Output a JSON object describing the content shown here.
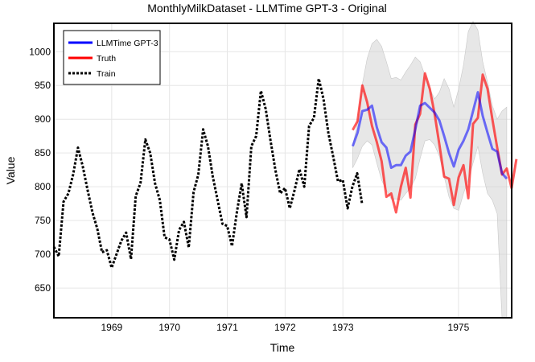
{
  "chart_data": {
    "type": "line",
    "title": "MonthlyMilkDataset - LLMTime GPT-3 - Original",
    "xlabel": "Time",
    "ylabel": "Value",
    "xlim": [
      1968.0,
      1975.92
    ],
    "ylim": [
      606,
      1042
    ],
    "xticks": [
      1969,
      1970,
      1971,
      1972,
      1973,
      1975
    ],
    "yticks": [
      650,
      700,
      750,
      800,
      850,
      900,
      950,
      1000
    ],
    "legend_position": "top-left",
    "colors": {
      "train": "#000000",
      "truth": "#ff0000",
      "forecast": "#0000ff",
      "band": "#d3d3d3"
    },
    "series": [
      {
        "name": "LLMTime GPT-3",
        "style": "solid",
        "x_start": 1973.17,
        "step": 0.0833,
        "values": [
          860,
          880,
          912,
          914,
          920,
          888,
          866,
          858,
          828,
          832,
          832,
          846,
          852,
          885,
          920,
          924,
          917,
          910,
          898,
          875,
          850,
          830,
          855,
          868,
          885,
          912,
          940,
          905,
          880,
          856,
          852,
          820,
          812
        ]
      },
      {
        "name": "Truth",
        "style": "solid",
        "x_start": 1973.17,
        "step": 0.0833,
        "values": [
          884,
          897,
          950,
          925,
          890,
          866,
          838,
          785,
          790,
          762,
          800,
          828,
          784,
          892,
          908,
          968,
          945,
          908,
          862,
          815,
          812,
          773,
          814,
          832,
          783,
          893,
          902,
          966,
          945,
          900,
          858,
          818,
          827,
          798,
          841
        ]
      },
      {
        "name": "Train",
        "style": "dotted",
        "x_start": 1968.0,
        "step": 0.0833,
        "values": [
          711,
          697,
          778,
          790,
          818,
          858,
          830,
          795,
          762,
          738,
          703,
          706,
          680,
          700,
          720,
          732,
          693,
          786,
          806,
          870,
          850,
          805,
          780,
          725,
          722,
          692,
          736,
          748,
          710,
          792,
          818,
          885,
          860,
          815,
          780,
          745,
          742,
          712,
          762,
          805,
          755,
          860,
          875,
          942,
          915,
          868,
          825,
          790,
          798,
          768,
          795,
          826,
          800,
          890,
          902,
          960,
          930,
          880,
          845,
          808,
          810,
          768,
          800,
          820,
          775
        ]
      },
      {
        "name": "Band",
        "x_start": 1973.17,
        "step": 0.0833,
        "upper": [
          860,
          895,
          952,
          990,
          1012,
          1018,
          1008,
          985,
          960,
          962,
          958,
          970,
          980,
          992,
          985,
          965,
          945,
          930,
          940,
          960,
          945,
          918,
          945,
          980,
          1030,
          1045,
          1032,
          985,
          955,
          920,
          900,
          912,
          918
        ],
        "lower": [
          828,
          842,
          860,
          868,
          862,
          835,
          810,
          795,
          782,
          782,
          780,
          790,
          798,
          812,
          842,
          868,
          870,
          862,
          845,
          815,
          785,
          768,
          765,
          790,
          810,
          835,
          860,
          820,
          790,
          780,
          760,
          606,
          606
        ]
      }
    ]
  },
  "legend": {
    "items": [
      "LLMTime GPT-3",
      "Truth",
      "Train"
    ]
  }
}
